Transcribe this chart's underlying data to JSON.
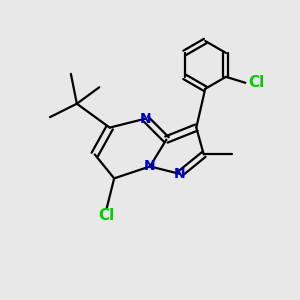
{
  "bg_color": "#e8e8e8",
  "bond_color": "#000000",
  "N_color": "#0000cc",
  "Cl_color": "#00cc00",
  "lw": 1.6,
  "fontsize": 10,
  "figsize": [
    3.0,
    3.0
  ],
  "dpi": 100,
  "xlim": [
    0,
    10
  ],
  "ylim": [
    0,
    10
  ]
}
